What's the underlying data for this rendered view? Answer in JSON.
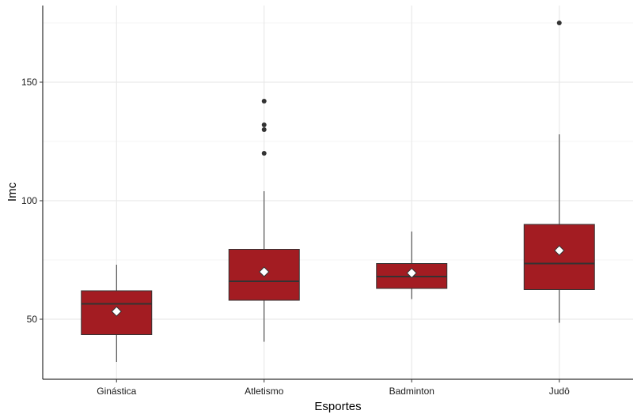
{
  "chart_data": {
    "type": "boxplot",
    "title": "",
    "xlabel": "Esportes",
    "ylabel": "Imc",
    "categories": [
      "Ginástica",
      "Atletismo",
      "Badminton",
      "Judô"
    ],
    "yticks": [
      50,
      100,
      150
    ],
    "ylim": [
      25,
      180
    ],
    "grid": true,
    "legend": "none",
    "box_color": "#a31c22",
    "median_color": "#333333",
    "mean_marker_color": "#ffffff",
    "boxes": [
      {
        "category": "Ginástica",
        "whisker_low": 32,
        "q1": 43.5,
        "median": 56.5,
        "q3": 62,
        "whisker_high": 73,
        "mean": 53.3,
        "outliers": []
      },
      {
        "category": "Atletismo",
        "whisker_low": 40.5,
        "q1": 58,
        "median": 66,
        "q3": 79.5,
        "whisker_high": 104,
        "mean": 70,
        "outliers": [
          120,
          130,
          132,
          142
        ]
      },
      {
        "category": "Badminton",
        "whisker_low": 58.5,
        "q1": 63,
        "median": 68,
        "q3": 73.5,
        "whisker_high": 87,
        "mean": 69.5,
        "outliers": []
      },
      {
        "category": "Judô",
        "whisker_low": 48.5,
        "q1": 62.5,
        "median": 73.5,
        "q3": 90,
        "whisker_high": 128,
        "mean": 79,
        "outliers": [
          175
        ]
      }
    ]
  }
}
